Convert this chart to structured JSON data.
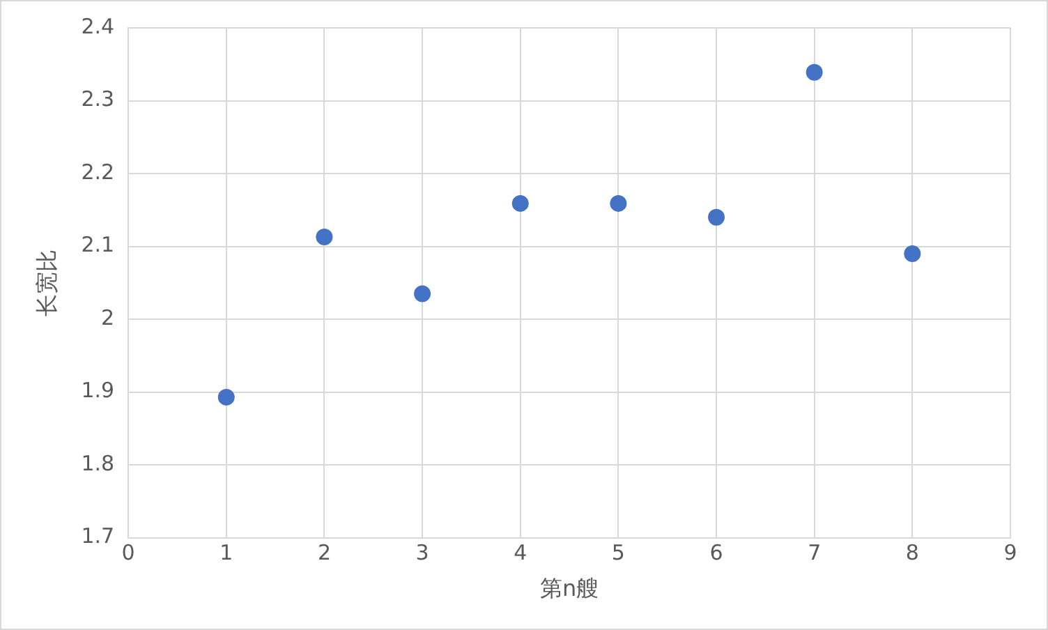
{
  "chart_data": {
    "type": "scatter",
    "xlabel": "第n艘",
    "ylabel": "长宽比",
    "x": [
      1,
      2,
      3,
      4,
      5,
      6,
      7,
      8
    ],
    "series": [
      {
        "color": "#4472c4",
        "values": [
          1.893,
          2.113,
          2.035,
          2.159,
          2.159,
          2.14,
          2.339,
          2.09
        ]
      }
    ],
    "xlim": [
      0,
      9
    ],
    "xticks": [
      0,
      1,
      2,
      3,
      4,
      5,
      6,
      7,
      8,
      9
    ],
    "ylim": [
      1.7,
      2.4
    ],
    "yticks": [
      1.7,
      1.8,
      1.9,
      2,
      2.1,
      2.2,
      2.3,
      2.4
    ],
    "grid": true,
    "legend": false,
    "marker": "circle"
  }
}
